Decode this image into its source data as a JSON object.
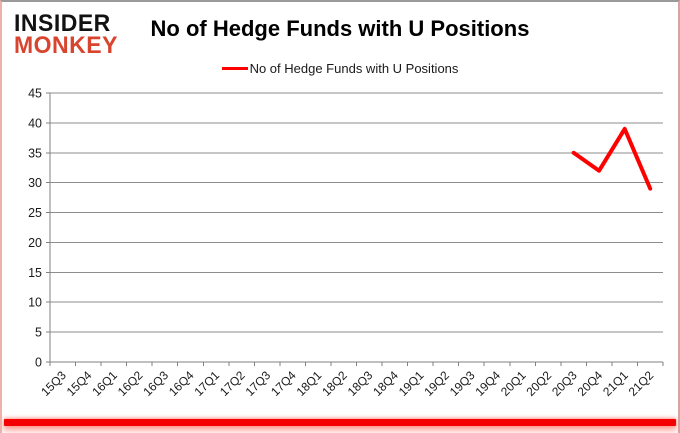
{
  "logo": {
    "line1": "INSIDER",
    "line2": "MONKEY",
    "color": "#d8442e"
  },
  "header": {
    "title": "No of Hedge Funds with U Positions"
  },
  "legend": {
    "label": "No of Hedge Funds with U Positions",
    "line_color": "#ff0000"
  },
  "chart_data": {
    "type": "line",
    "title": "No of Hedge Funds with U Positions",
    "categories": [
      "15Q3",
      "15Q4",
      "16Q1",
      "16Q2",
      "16Q3",
      "16Q4",
      "17Q1",
      "17Q2",
      "17Q3",
      "17Q4",
      "18Q1",
      "18Q2",
      "18Q3",
      "18Q4",
      "19Q1",
      "19Q2",
      "19Q3",
      "19Q4",
      "20Q1",
      "20Q2",
      "20Q3",
      "20Q4",
      "21Q1",
      "21Q2"
    ],
    "series": [
      {
        "name": "No of Hedge Funds with U Positions",
        "color": "#ff0000",
        "values": [
          null,
          null,
          null,
          null,
          null,
          null,
          null,
          null,
          null,
          null,
          null,
          null,
          null,
          null,
          null,
          null,
          null,
          null,
          null,
          null,
          35,
          32,
          39,
          29
        ]
      }
    ],
    "ylim": [
      0,
      45
    ],
    "yticks": [
      0,
      5,
      10,
      15,
      20,
      25,
      30,
      35,
      40,
      45
    ],
    "grid": true,
    "legend_position": "top",
    "colors": {
      "gridline": "#8e8e8e",
      "axis": "#808080",
      "tick_label": "#1a1a1a"
    }
  }
}
